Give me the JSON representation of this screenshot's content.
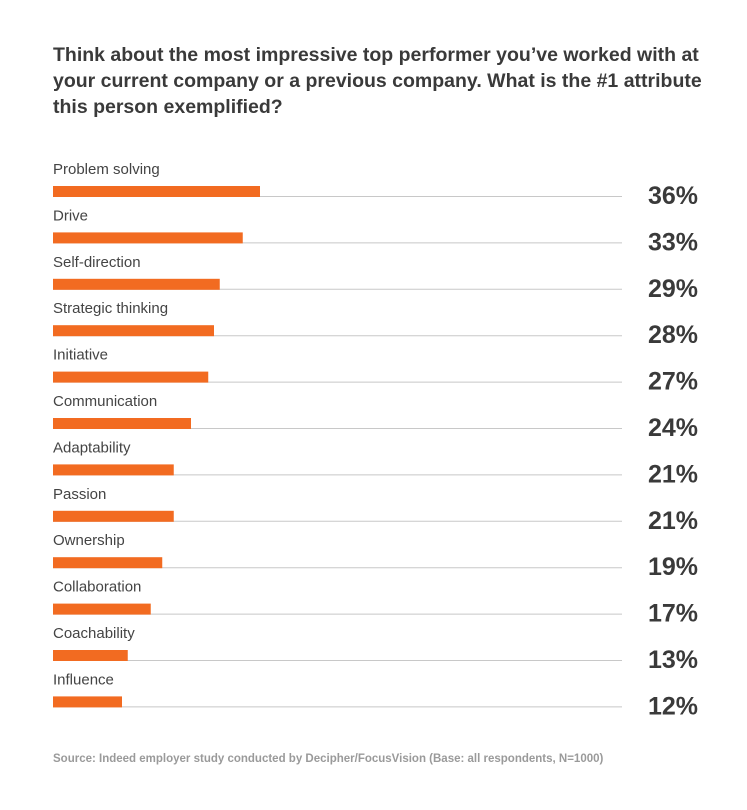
{
  "chart_data": {
    "type": "bar",
    "orientation": "horizontal",
    "title": "Think about the most impressive top performer you’ve worked with at your current company or a previous company. What is the #1 attribute this person exemplified?",
    "categories": [
      "Problem solving",
      "Drive",
      "Self-direction",
      "Strategic thinking",
      "Initiative",
      "Communication",
      "Adaptability",
      "Passion",
      "Ownership",
      "Collaboration",
      "Coachability",
      "Influence"
    ],
    "values": [
      36,
      33,
      29,
      28,
      27,
      24,
      21,
      21,
      19,
      17,
      13,
      12
    ],
    "value_labels": [
      "36%",
      "33%",
      "29%",
      "28%",
      "27%",
      "24%",
      "21%",
      "21%",
      "19%",
      "17%",
      "13%",
      "12%"
    ],
    "unit": "%",
    "xlim": [
      0,
      100
    ],
    "bar_color": "#f26b21",
    "baseline_color": "#c8c8c8",
    "source": "Source: Indeed employer study conducted by Decipher/FocusVision (Base: all respondents, N=1000)"
  }
}
